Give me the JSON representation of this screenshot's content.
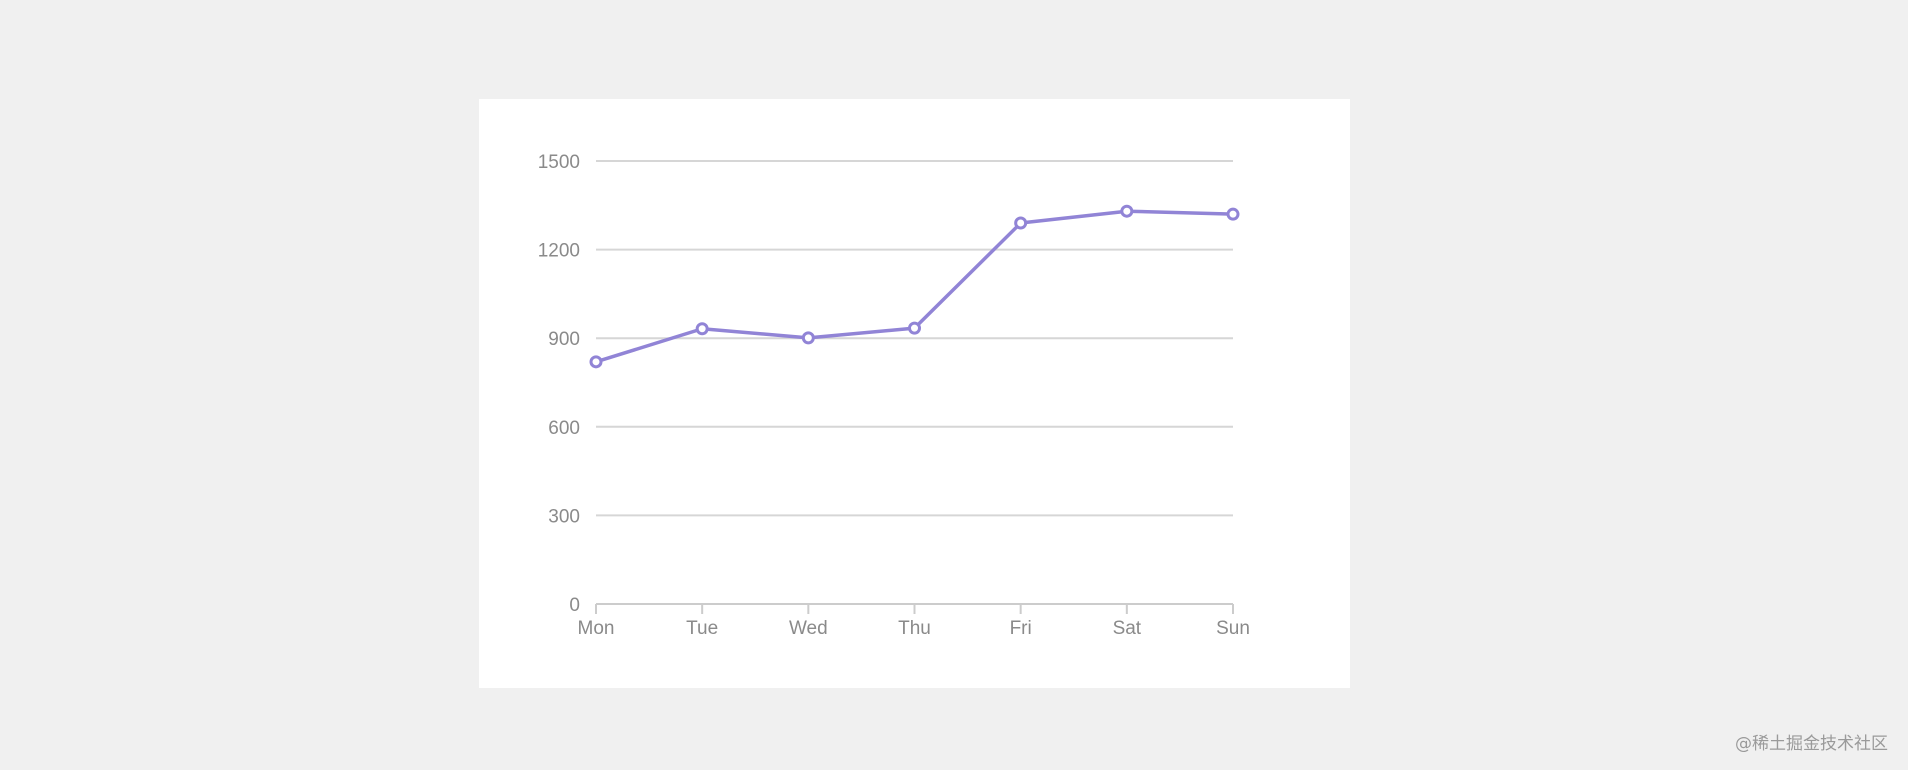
{
  "chart_data": {
    "type": "line",
    "categories": [
      "Mon",
      "Tue",
      "Wed",
      "Thu",
      "Fri",
      "Sat",
      "Sun"
    ],
    "series": [
      {
        "values": [
          820,
          932,
          901,
          934,
          1290,
          1330,
          1320
        ]
      }
    ],
    "ylim": [
      0,
      1500
    ],
    "yticks": [
      0,
      300,
      600,
      900,
      1200,
      1500
    ],
    "grid": true,
    "line_color": "#9184d6",
    "marker": "hollow-circle"
  },
  "watermark": "@稀土掘金技术社区"
}
